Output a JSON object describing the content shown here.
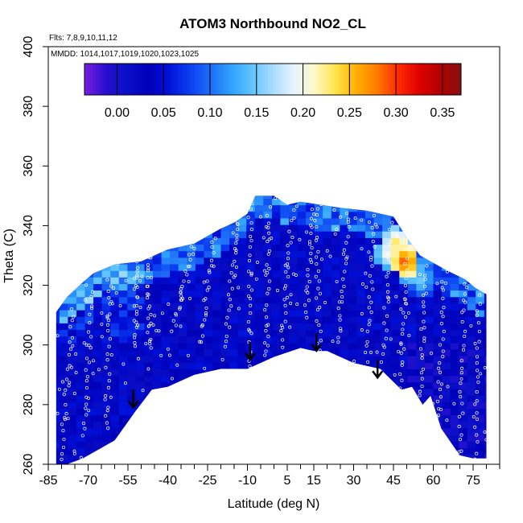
{
  "chart_data": {
    "type": "heatmap",
    "title": "ATOM3 Northbound NO2_CL",
    "flights_note": "Flts: 7,8,9,10,11,12",
    "mmdd_note": "MMDD: 1014,1017,1019,1020,1023,1025",
    "xlabel": "Latitude (deg N)",
    "ylabel": "Theta (C)",
    "xlim": [
      -85,
      85
    ],
    "ylim": [
      260,
      400
    ],
    "x_tick_labels": [
      "-85",
      "-70",
      "-55",
      "-40",
      "-25",
      "-10",
      "5",
      "15",
      "30",
      "45",
      "60",
      "75"
    ],
    "x_tick_values": [
      -85,
      -70,
      -55,
      -40,
      -25,
      -10,
      5,
      15,
      30,
      45,
      60,
      75
    ],
    "y_tick_values": [
      260,
      280,
      300,
      320,
      340,
      360,
      380,
      400
    ],
    "colorbar": {
      "min": -0.035,
      "max": 0.37,
      "tick_values": [
        0.0,
        0.05,
        0.1,
        0.15,
        0.2,
        0.25,
        0.3,
        0.35
      ],
      "tick_labels": [
        "0.00",
        "0.05",
        "0.10",
        "0.15",
        "0.20",
        "0.25",
        "0.30",
        "0.35"
      ],
      "colors": [
        "#7a1ee0",
        "#2a0fd0",
        "#0a10c8",
        "#0000b8",
        "#0010d8",
        "#0a3cf0",
        "#1e6ef8",
        "#2fa0ff",
        "#60c4ff",
        "#a8ddff",
        "#e6f4ff",
        "#fff8c8",
        "#ffe44a",
        "#ffb000",
        "#ff7a00",
        "#ff2a00",
        "#e00000",
        "#b00000",
        "#8a1010"
      ]
    },
    "coverage_upper": [
      [
        -82,
        311
      ],
      [
        -78,
        316
      ],
      [
        -72,
        321
      ],
      [
        -68,
        324
      ],
      [
        -60,
        327
      ],
      [
        -50,
        328
      ],
      [
        -40,
        332
      ],
      [
        -30,
        334
      ],
      [
        -20,
        339
      ],
      [
        -15,
        341
      ],
      [
        -10,
        344
      ],
      [
        -7,
        350
      ],
      [
        0,
        350
      ],
      [
        5,
        347
      ],
      [
        10,
        348
      ],
      [
        25,
        346
      ],
      [
        35,
        345
      ],
      [
        45,
        343
      ],
      [
        50,
        336
      ],
      [
        55,
        330
      ],
      [
        65,
        325
      ],
      [
        72,
        322
      ],
      [
        76,
        319
      ],
      [
        80,
        317
      ]
    ],
    "coverage_lower": [
      [
        80,
        262
      ],
      [
        75,
        262
      ],
      [
        70,
        263
      ],
      [
        63,
        272
      ],
      [
        59,
        283
      ],
      [
        56,
        280
      ],
      [
        52,
        286
      ],
      [
        48,
        285
      ],
      [
        40,
        292
      ],
      [
        30,
        294
      ],
      [
        20,
        298
      ],
      [
        15,
        298
      ],
      [
        10,
        299
      ],
      [
        0,
        296
      ],
      [
        -10,
        292
      ],
      [
        -20,
        292
      ],
      [
        -30,
        290
      ],
      [
        -40,
        286
      ],
      [
        -46,
        285
      ],
      [
        -52,
        278
      ],
      [
        -60,
        268
      ],
      [
        -72,
        262
      ],
      [
        -78,
        260
      ],
      [
        -82,
        260
      ]
    ],
    "hotspots": [
      {
        "lat": 45,
        "theta": 333,
        "value": 0.25
      },
      {
        "lat": 48,
        "theta": 327,
        "value": 0.3
      },
      {
        "lat": 42,
        "theta": 330,
        "value": 0.22
      },
      {
        "lat": 50,
        "theta": 324,
        "value": 0.2
      },
      {
        "lat": 54,
        "theta": 320,
        "value": 0.16
      },
      {
        "lat": -8,
        "theta": 348,
        "value": 0.14
      }
    ],
    "tropopause_arrows": [
      {
        "lat": -53,
        "theta": 285
      },
      {
        "lat": -9,
        "theta": 301
      },
      {
        "lat": 16,
        "theta": 304
      },
      {
        "lat": 39,
        "theta": 295
      }
    ],
    "profiles": [
      {
        "lat0": -80,
        "theta0": 262,
        "lat1": -76,
        "theta1": 312
      },
      {
        "lat0": -72,
        "theta0": 270,
        "lat1": -68,
        "theta1": 318
      },
      {
        "lat0": -63,
        "theta0": 272,
        "lat1": -62,
        "theta1": 322
      },
      {
        "lat0": -52,
        "theta0": 300,
        "lat1": -52,
        "theta1": 328
      },
      {
        "lat0": -47,
        "theta0": 300,
        "lat1": -47,
        "theta1": 330
      },
      {
        "lat0": -38,
        "theta0": 305,
        "lat1": -30,
        "theta1": 335
      },
      {
        "lat0": -28,
        "theta0": 300,
        "lat1": -22,
        "theta1": 340
      },
      {
        "lat0": -18,
        "theta0": 300,
        "lat1": -14,
        "theta1": 342
      },
      {
        "lat0": -9,
        "theta0": 293,
        "lat1": -9,
        "theta1": 348
      },
      {
        "lat0": -3,
        "theta0": 296,
        "lat1": -2,
        "theta1": 346
      },
      {
        "lat0": 3,
        "theta0": 300,
        "lat1": 7,
        "theta1": 345
      },
      {
        "lat0": 12,
        "theta0": 310,
        "lat1": 15,
        "theta1": 347
      },
      {
        "lat0": 17,
        "theta0": 298,
        "lat1": 16,
        "theta1": 345
      },
      {
        "lat0": 24,
        "theta0": 300,
        "lat1": 28,
        "theta1": 345
      },
      {
        "lat0": 35,
        "theta0": 295,
        "lat1": 38,
        "theta1": 343
      },
      {
        "lat0": 41,
        "theta0": 292,
        "lat1": 44,
        "theta1": 340
      },
      {
        "lat0": 48,
        "theta0": 286,
        "lat1": 50,
        "theta1": 332
      },
      {
        "lat0": 55,
        "theta0": 283,
        "lat1": 57,
        "theta1": 326
      },
      {
        "lat0": 62,
        "theta0": 275,
        "lat1": 64,
        "theta1": 322
      },
      {
        "lat0": 70,
        "theta0": 265,
        "lat1": 72,
        "theta1": 320
      },
      {
        "lat0": 76,
        "theta0": 262,
        "lat1": 77,
        "theta1": 317
      }
    ]
  }
}
